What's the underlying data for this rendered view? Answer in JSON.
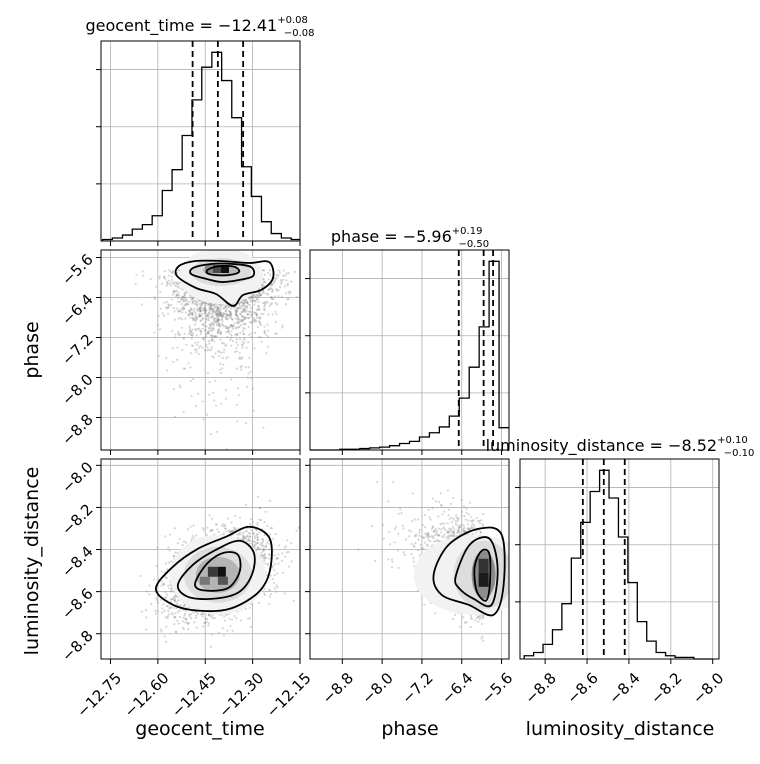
{
  "chart_data": {
    "type": "corner",
    "parameters": [
      "geocent_time",
      "phase",
      "luminosity_distance"
    ],
    "axis_labels": {
      "x": [
        "geocent_time",
        "phase",
        "luminosity_distance"
      ],
      "y": [
        "phase",
        "luminosity_distance"
      ]
    },
    "ranges": {
      "geocent_time": [
        -12.78,
        -12.15
      ],
      "phase": [
        -9.45,
        -5.45
      ],
      "luminosity_distance": [
        -8.92,
        -7.97
      ]
    },
    "ticks": {
      "geocent_time": [
        -12.75,
        -12.6,
        -12.45,
        -12.3,
        -12.15
      ],
      "phase": [
        -8.8,
        -8.0,
        -7.2,
        -6.4,
        -5.6
      ],
      "luminosity_distance": [
        -8.8,
        -8.6,
        -8.4,
        -8.2,
        -8.0
      ]
    },
    "tick_labels": {
      "geocent_time": [
        "−12.75",
        "−12.60",
        "−12.45",
        "−12.30",
        "−12.15"
      ],
      "phase": [
        "−8.8",
        "−8.0",
        "−7.2",
        "−6.4",
        "−5.6"
      ],
      "luminosity_distance": [
        "−8.8",
        "−8.6",
        "−8.4",
        "−8.2",
        "−8.0"
      ]
    },
    "titles": {
      "geocent_time": {
        "name": "geocent_time",
        "median": "−12.41",
        "plus": "+0.08",
        "minus": "−0.08"
      },
      "phase": {
        "name": "phase",
        "median": "−5.96",
        "plus": "+0.19",
        "minus": "−0.50"
      },
      "luminosity_distance": {
        "name": "luminosity_distance",
        "median": "−8.52",
        "plus": "+0.10",
        "minus": "−0.10"
      }
    },
    "quantiles": {
      "geocent_time": [
        -12.49,
        -12.41,
        -12.33
      ],
      "phase": [
        -6.46,
        -5.96,
        -5.77
      ],
      "luminosity_distance": [
        -8.62,
        -8.52,
        -8.42
      ]
    },
    "histograms": {
      "geocent_time": {
        "bin_edges": [
          -12.775,
          -12.744,
          -12.712,
          -12.681,
          -12.649,
          -12.618,
          -12.586,
          -12.555,
          -12.523,
          -12.492,
          -12.461,
          -12.429,
          -12.398,
          -12.366,
          -12.335,
          -12.304,
          -12.272,
          -12.241,
          -12.209,
          -12.178,
          -12.146
        ],
        "counts": [
          1,
          2,
          4,
          8,
          11,
          17,
          34,
          48,
          71,
          95,
          117,
          127,
          108,
          83,
          50,
          30,
          13,
          5,
          2,
          1
        ]
      },
      "phase": {
        "bin_edges": [
          -9.45,
          -9.25,
          -9.05,
          -8.85,
          -8.65,
          -8.45,
          -8.25,
          -8.05,
          -7.85,
          -7.65,
          -7.45,
          -7.25,
          -7.05,
          -6.85,
          -6.65,
          -6.45,
          -6.25,
          -6.05,
          -5.85,
          -5.65,
          -5.45
        ],
        "counts": [
          0,
          0,
          0,
          1,
          1,
          2,
          3,
          4,
          6,
          9,
          12,
          18,
          24,
          32,
          47,
          72,
          115,
          171,
          262,
          31
        ]
      },
      "luminosity_distance": {
        "bin_edges": [
          -8.9,
          -8.855,
          -8.81,
          -8.765,
          -8.72,
          -8.675,
          -8.63,
          -8.585,
          -8.54,
          -8.495,
          -8.45,
          -8.405,
          -8.36,
          -8.315,
          -8.27,
          -8.225,
          -8.18,
          -8.135,
          -8.09,
          -8.045,
          -8.0
        ],
        "counts": [
          2,
          4,
          9,
          18,
          34,
          62,
          84,
          103,
          116,
          99,
          75,
          47,
          23,
          11,
          4,
          2,
          1,
          1,
          0,
          0
        ]
      }
    },
    "joint": {
      "phase_vs_geocent_time": {
        "center": [
          -12.4,
          -5.85
        ],
        "spread": [
          0.08,
          0.6
        ]
      },
      "luminosity_distance_vs_geocent_time": {
        "center": [
          -12.41,
          -8.52
        ],
        "spread": [
          0.08,
          0.1
        ]
      },
      "luminosity_distance_vs_phase": {
        "center": [
          -5.96,
          -8.52
        ],
        "spread": [
          0.45,
          0.1
        ]
      }
    },
    "grid": true,
    "colors": {
      "line": "#000000",
      "grid": "#b0b0b0",
      "scatter": "#8a8a8a",
      "background": "#ffffff"
    }
  }
}
